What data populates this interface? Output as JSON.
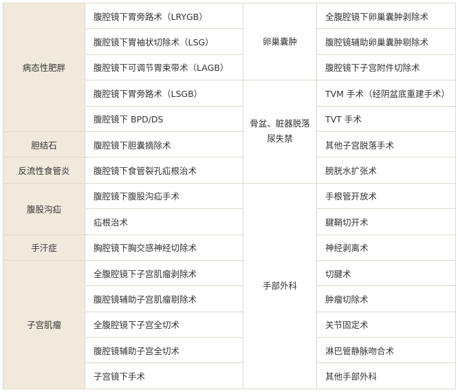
{
  "colors": {
    "category_bg": "#f1e9dc",
    "border": "#ddd8cc",
    "text": "#333333"
  },
  "left": [
    {
      "category": "病态性肥胖",
      "procedures": [
        "腹腔镜下胃旁路术（LRYGB）",
        "腹腔镜下胃袖状切除术（LSG）",
        "腹腔镜下可调节胃束带术（LAGB）",
        "腹腔镜下胃旁路术（LSGB）",
        "腹腔镜下 BPD/DS"
      ]
    },
    {
      "category": "胆结石",
      "procedures": [
        "腹腔镜下胆囊摘除术"
      ]
    },
    {
      "category": "反流性食管炎",
      "procedures": [
        "腹腔镜下食管裂孔疝根治术"
      ]
    },
    {
      "category": "腹股沟疝",
      "procedures": [
        "腹腔镜下腹股沟疝手术",
        "疝根治术"
      ]
    },
    {
      "category": "手汗症",
      "procedures": [
        "胸腔镜下胸交感神经切除术"
      ]
    },
    {
      "category": "子宫肌瘤",
      "procedures": [
        "全腹腔镜下子宫肌瘤剥除术",
        "腹腔镜辅助子宫肌瘤剔除术",
        "全腹腔镜下子宫全切术",
        "腹腔镜辅助子宫全切术",
        "子宫镜下手术"
      ]
    }
  ],
  "right": [
    {
      "category": "卵巢囊肿",
      "procedures": [
        "全腹腔镜下卵巢囊肿剥除术",
        "腹腔镜辅助卵巢囊肿剔除术",
        "腹腔镜下子宫附件切除术"
      ]
    },
    {
      "category": "骨盆、脏器脱落尿失禁",
      "procedures": [
        "TVM 手术（经阴盆底重建手术）",
        "TVT 手术",
        "其他子宫脱落手术",
        "膀胱水扩张术"
      ]
    },
    {
      "category": "手部外科",
      "procedures": [
        "手根管开放术",
        "腱鞘切开术",
        "神经剥离术",
        "切腱术",
        "肿瘤切除术",
        "关节固定术",
        "淋巴管静脉吻合术",
        "其他手部外科"
      ]
    }
  ]
}
